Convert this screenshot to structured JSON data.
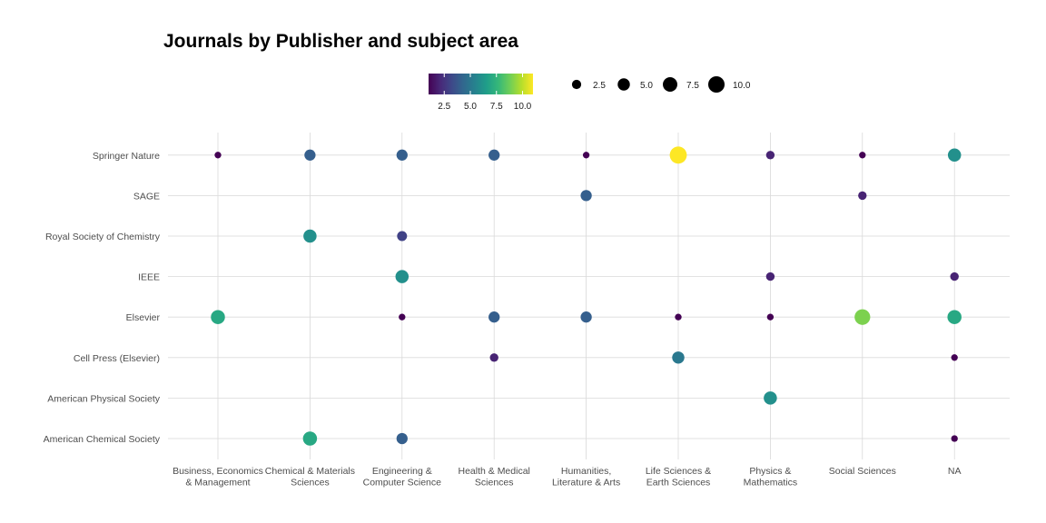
{
  "chart_data": {
    "type": "scatter",
    "title": "Journals by Publisher and subject area",
    "x_categories": [
      "Business, Economics & Management",
      "Chemical & Materials Sciences",
      "Engineering & Computer Science",
      "Health & Medical Sciences",
      "Humanities, Literature & Arts",
      "Life Sciences & Earth Sciences",
      "Physics & Mathematics",
      "Social Sciences",
      "NA"
    ],
    "x_tick_lines": [
      [
        "Business, Economics",
        "& Management"
      ],
      [
        "Chemical & Materials",
        "Sciences"
      ],
      [
        "Engineering &",
        "Computer Science"
      ],
      [
        "Health & Medical",
        "Sciences"
      ],
      [
        "Humanities,",
        "Literature & Arts"
      ],
      [
        "Life Sciences &",
        "Earth Sciences"
      ],
      [
        "Physics &",
        "Mathematics"
      ],
      [
        "Social Sciences"
      ],
      [
        "NA"
      ]
    ],
    "y_categories": [
      "American Chemical Society",
      "American Physical Society",
      "Cell Press (Elsevier)",
      "Elsevier",
      "IEEE",
      "Royal Society of Chemistry",
      "SAGE",
      "Springer Nature"
    ],
    "color_scale": "viridis",
    "color_legend": {
      "ticks": [
        2.5,
        5.0,
        7.5,
        10.0
      ],
      "tick_labels": [
        "2.5",
        "5.0",
        "7.5",
        "10.0"
      ],
      "range": [
        1,
        11
      ]
    },
    "size_legend": {
      "values": [
        2.5,
        5.0,
        7.5,
        10.0
      ],
      "labels": [
        "2.5",
        "5.0",
        "7.5",
        "10.0"
      ]
    },
    "legend_position": "top",
    "grid": true,
    "points": [
      {
        "publisher": "Springer Nature",
        "subject": "Business, Economics & Management",
        "count": 1
      },
      {
        "publisher": "Springer Nature",
        "subject": "Chemical & Materials Sciences",
        "count": 4
      },
      {
        "publisher": "Springer Nature",
        "subject": "Engineering & Computer Science",
        "count": 4
      },
      {
        "publisher": "Springer Nature",
        "subject": "Health & Medical Sciences",
        "count": 4
      },
      {
        "publisher": "Springer Nature",
        "subject": "Humanities, Literature & Arts",
        "count": 1
      },
      {
        "publisher": "Springer Nature",
        "subject": "Life Sciences & Earth Sciences",
        "count": 11
      },
      {
        "publisher": "Springer Nature",
        "subject": "Physics & Mathematics",
        "count": 2
      },
      {
        "publisher": "Springer Nature",
        "subject": "Social Sciences",
        "count": 1
      },
      {
        "publisher": "Springer Nature",
        "subject": "NA",
        "count": 6
      },
      {
        "publisher": "SAGE",
        "subject": "Humanities, Literature & Arts",
        "count": 4
      },
      {
        "publisher": "SAGE",
        "subject": "Social Sciences",
        "count": 2
      },
      {
        "publisher": "Royal Society of Chemistry",
        "subject": "Chemical & Materials Sciences",
        "count": 6
      },
      {
        "publisher": "Royal Society of Chemistry",
        "subject": "Engineering & Computer Science",
        "count": 3
      },
      {
        "publisher": "IEEE",
        "subject": "Engineering & Computer Science",
        "count": 6
      },
      {
        "publisher": "IEEE",
        "subject": "Physics & Mathematics",
        "count": 2
      },
      {
        "publisher": "IEEE",
        "subject": "NA",
        "count": 2
      },
      {
        "publisher": "Elsevier",
        "subject": "Business, Economics & Management",
        "count": 7
      },
      {
        "publisher": "Elsevier",
        "subject": "Engineering & Computer Science",
        "count": 1
      },
      {
        "publisher": "Elsevier",
        "subject": "Health & Medical Sciences",
        "count": 4
      },
      {
        "publisher": "Elsevier",
        "subject": "Humanities, Literature & Arts",
        "count": 4
      },
      {
        "publisher": "Elsevier",
        "subject": "Life Sciences & Earth Sciences",
        "count": 1
      },
      {
        "publisher": "Elsevier",
        "subject": "Physics & Mathematics",
        "count": 1
      },
      {
        "publisher": "Elsevier",
        "subject": "Social Sciences",
        "count": 9
      },
      {
        "publisher": "Elsevier",
        "subject": "NA",
        "count": 7
      },
      {
        "publisher": "Cell Press (Elsevier)",
        "subject": "Health & Medical Sciences",
        "count": 2
      },
      {
        "publisher": "Cell Press (Elsevier)",
        "subject": "Life Sciences & Earth Sciences",
        "count": 5
      },
      {
        "publisher": "Cell Press (Elsevier)",
        "subject": "NA",
        "count": 1
      },
      {
        "publisher": "American Physical Society",
        "subject": "Physics & Mathematics",
        "count": 6
      },
      {
        "publisher": "American Chemical Society",
        "subject": "Chemical & Materials Sciences",
        "count": 7
      },
      {
        "publisher": "American Chemical Society",
        "subject": "Engineering & Computer Science",
        "count": 4
      },
      {
        "publisher": "American Chemical Society",
        "subject": "NA",
        "count": 1
      }
    ]
  }
}
